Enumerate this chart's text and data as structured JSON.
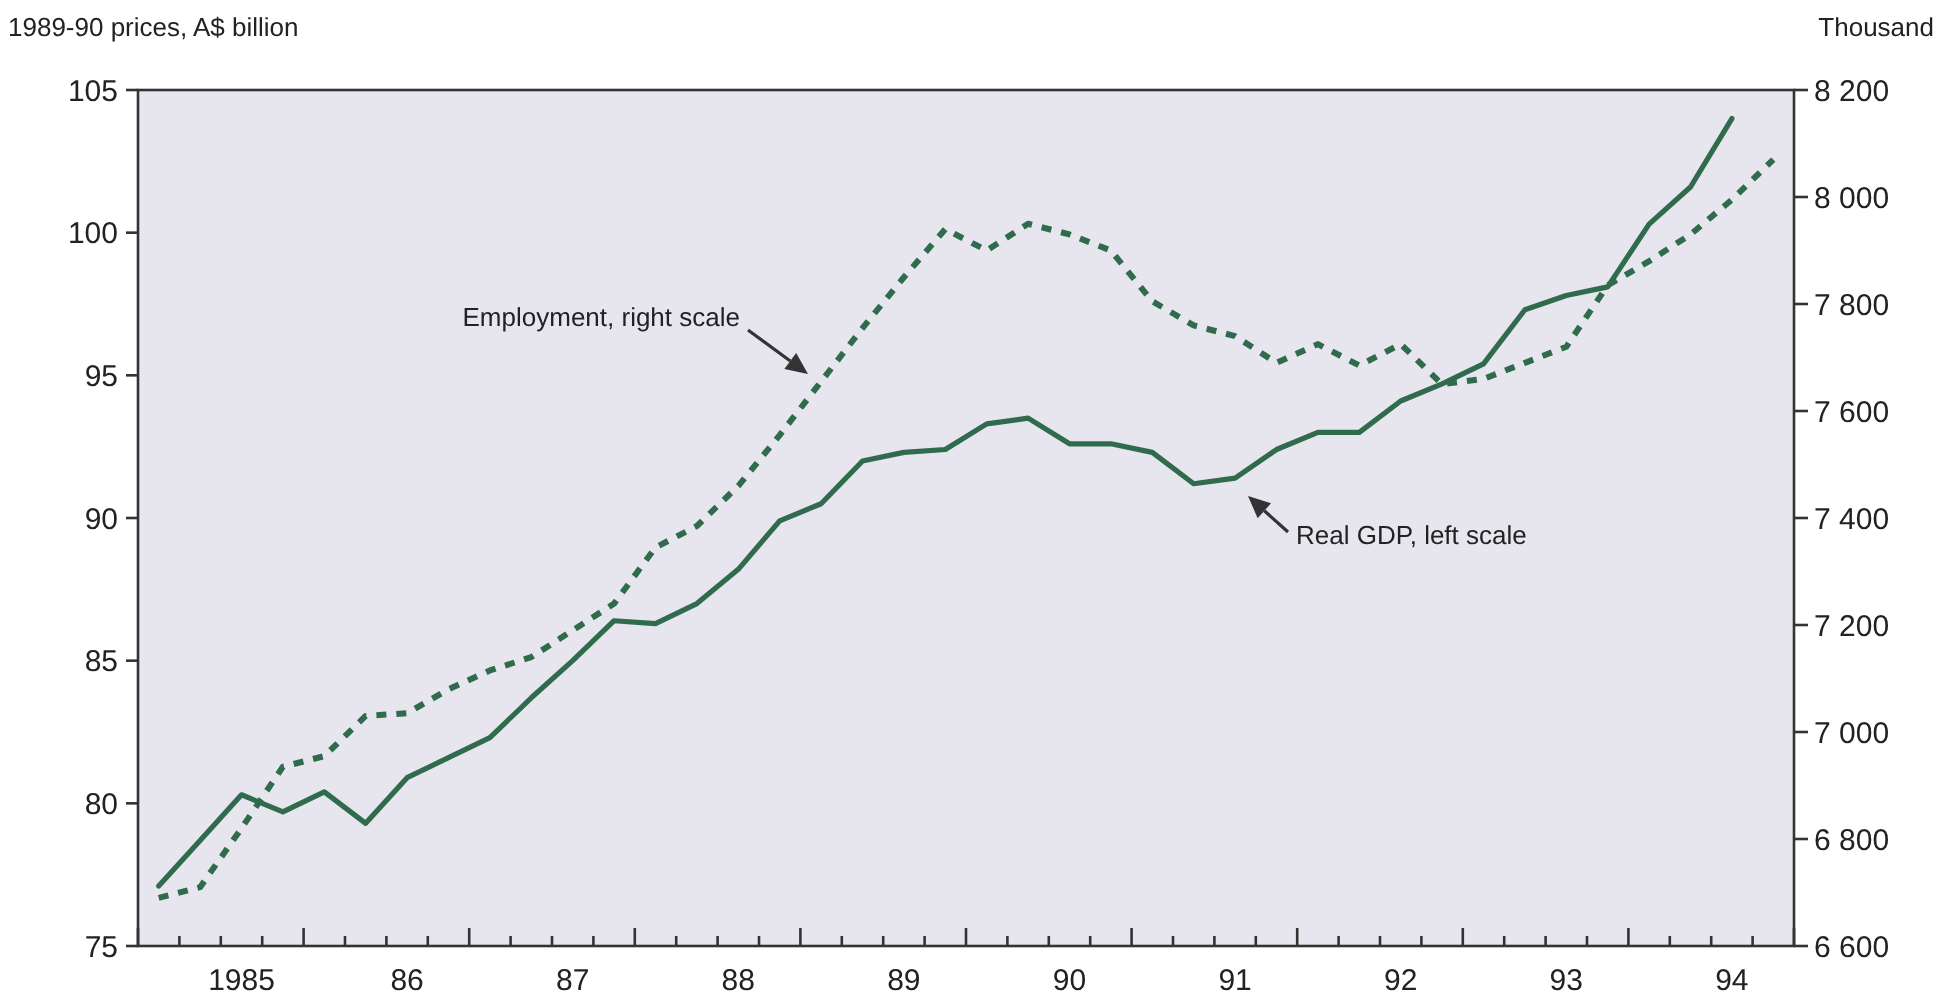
{
  "chart_data": {
    "type": "line",
    "ylabel": "1989-90 prices, A$ billion",
    "y2label": "Thousand",
    "categories": [
      null,
      null,
      "1985",
      null,
      null,
      null,
      "86",
      null,
      null,
      null,
      "87",
      null,
      null,
      null,
      "88",
      null,
      null,
      null,
      "89",
      null,
      null,
      null,
      "90",
      null,
      null,
      null,
      "91",
      null,
      null,
      null,
      "92",
      null,
      null,
      null,
      "93",
      null,
      null,
      null,
      "94",
      null
    ],
    "ylim": [
      75,
      105
    ],
    "yticks": [
      75,
      80,
      85,
      90,
      95,
      100,
      105
    ],
    "y2lim": [
      6600,
      8200
    ],
    "y2ticks": [
      {
        "value": 6600,
        "label": "6 600"
      },
      {
        "value": 6800,
        "label": "6 800"
      },
      {
        "value": 7000,
        "label": "7 000"
      },
      {
        "value": 7200,
        "label": "7 200"
      },
      {
        "value": 7400,
        "label": "7 400"
      },
      {
        "value": 7600,
        "label": "7 600"
      },
      {
        "value": 7800,
        "label": "7 800"
      },
      {
        "value": 8000,
        "label": "8 000"
      },
      {
        "value": 8200,
        "label": "8 200"
      }
    ],
    "grid": false,
    "series": [
      {
        "color": "#2f6b4c",
        "line_style": "solid",
        "values": [
          77.1,
          78.7,
          80.3,
          79.7,
          80.4,
          79.3,
          80.9,
          81.6,
          82.3,
          83.7,
          85.0,
          86.4,
          86.3,
          87.0,
          88.2,
          89.9,
          90.5,
          92.0,
          92.3,
          92.4,
          93.3,
          93.5,
          92.6,
          92.6,
          92.3,
          91.2,
          91.4,
          92.4,
          93.0,
          93.0,
          94.1,
          94.7,
          95.4,
          97.3,
          97.8,
          98.1,
          100.3,
          101.6,
          104.0,
          null
        ]
      },
      {
        "color": "#2f6b4c",
        "line_style": "dashed",
        "axis": "y2",
        "values": [
          6690,
          6710,
          6820,
          6935,
          6955,
          7030,
          7035,
          7080,
          7115,
          7140,
          7190,
          7240,
          7345,
          7385,
          7460,
          7555,
          7655,
          7755,
          7850,
          7940,
          7900,
          7950,
          7930,
          7900,
          7805,
          7760,
          7740,
          7690,
          7725,
          7685,
          7725,
          7650,
          7660,
          7690,
          7720,
          7835,
          7880,
          7930,
          7995,
          8070
        ]
      }
    ],
    "annotations": [
      "Employment, right scale",
      "Real GDP, left scale"
    ]
  }
}
